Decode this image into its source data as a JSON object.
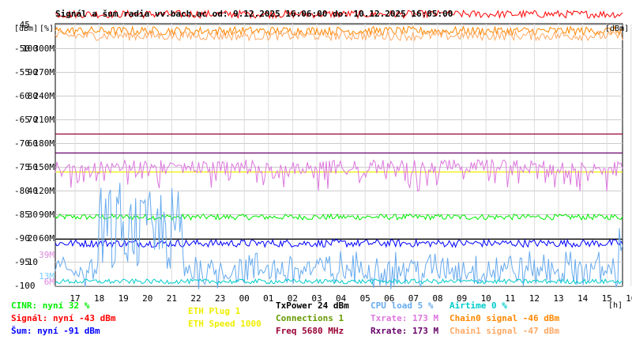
{
  "chart_data": {
    "type": "line",
    "title": "Signál a šum radia vv.bach.ac od: 9.12.2025 16:06:00 do: 10.12.2025 16:05:00",
    "unit_labels": [
      "[dBm]",
      "[%]"
    ],
    "x_unit": "[h]",
    "x_ticks": [
      "17",
      "18",
      "19",
      "20",
      "21",
      "22",
      "23",
      "00",
      "01",
      "02",
      "03",
      "04",
      "05",
      "06",
      "07",
      "08",
      "09",
      "10",
      "11",
      "12",
      "13",
      "14",
      "15",
      "16"
    ],
    "y_axes": {
      "dbm": [
        "-45",
        "-50",
        "-55",
        "-60",
        "-65",
        "-70",
        "-75",
        "-80",
        "-85",
        "-90",
        "-95",
        "-100"
      ],
      "percent": [
        "",
        "100",
        "90",
        "80",
        "70",
        "60",
        "50",
        "40",
        "30",
        "20",
        "10",
        ""
      ],
      "rate": [
        "",
        "300M",
        "270M",
        "240M",
        "210M",
        "180M",
        "150M",
        "120M",
        "90M",
        "60M",
        "",
        ""
      ]
    },
    "y_ranges": {
      "dbm": [
        -100,
        -45
      ],
      "percent": [
        0,
        110
      ]
    },
    "extra_tick_labels": [
      {
        "text": "39M",
        "color": "#dd88dd"
      },
      {
        "text": "13M",
        "color": "#77ccff"
      },
      {
        "text": "6M",
        "color": "#dd88dd"
      }
    ],
    "series": [
      {
        "name": "CINR",
        "color": "#00ee00",
        "level_dbm": -85.5,
        "noise": 0.6
      },
      {
        "name": "Signál",
        "color": "#ff0000",
        "level_dbm": -43,
        "noise": 0.8
      },
      {
        "name": "Šum",
        "color": "#0000ff",
        "level_dbm": -91,
        "noise": 0.8
      },
      {
        "name": "Chain0 signal",
        "color": "#ff8800",
        "level_dbm": -46.5,
        "noise": 0.9
      },
      {
        "name": "Chain1 signal",
        "color": "#ffaa66",
        "level_dbm": -47.5,
        "noise": 1.0
      },
      {
        "name": "Txrate",
        "color": "#dd77dd",
        "level_dbm": -75,
        "noise": 1.5
      },
      {
        "name": "CPU load",
        "color": "#66aaee",
        "level_dbm": -98,
        "noise": 3
      },
      {
        "name": "Airtime",
        "color": "#00cccc",
        "level_dbm": -99,
        "noise": 0.5
      }
    ],
    "reference_lines": [
      {
        "color": "#990033",
        "level_dbm": -68
      },
      {
        "color": "#660066",
        "level_dbm": -72
      },
      {
        "color": "#eeee00",
        "level_dbm": -76
      },
      {
        "color": "#000000",
        "level_dbm": -90
      }
    ],
    "grid": true
  },
  "legend": {
    "col1": [
      {
        "text": "CINR: nyní 32 %",
        "color": "#00ee00"
      },
      {
        "text": "Signál: nyní -43 dBm",
        "color": "#ff0000"
      },
      {
        "text": "Šum: nyní -91 dBm",
        "color": "#0000ff"
      }
    ],
    "col2": [
      {
        "text": "ETH Plug 1",
        "color": "#eeee00"
      },
      {
        "text": "ETH Speed 1000",
        "color": "#eeee00"
      }
    ],
    "col3": [
      {
        "text": "TxPower 24 dBm",
        "color": "#000000"
      },
      {
        "text": "Connections 1",
        "color": "#669900"
      },
      {
        "text": "Freq 5680 MHz",
        "color": "#990033"
      }
    ],
    "col4": [
      {
        "text": "CPU load 5 %",
        "color": "#66aaee"
      },
      {
        "text": "Txrate: 173 M",
        "color": "#dd77dd"
      },
      {
        "text": "Rxrate: 173 M",
        "color": "#660066"
      }
    ],
    "col5": [
      {
        "text": "Airtime 0 %",
        "color": "#00cccc"
      },
      {
        "text": "Chain0 signal -46 dBm",
        "color": "#ff8800"
      },
      {
        "text": "Chain1 signal -47 dBm",
        "color": "#ffaa66"
      }
    ]
  }
}
